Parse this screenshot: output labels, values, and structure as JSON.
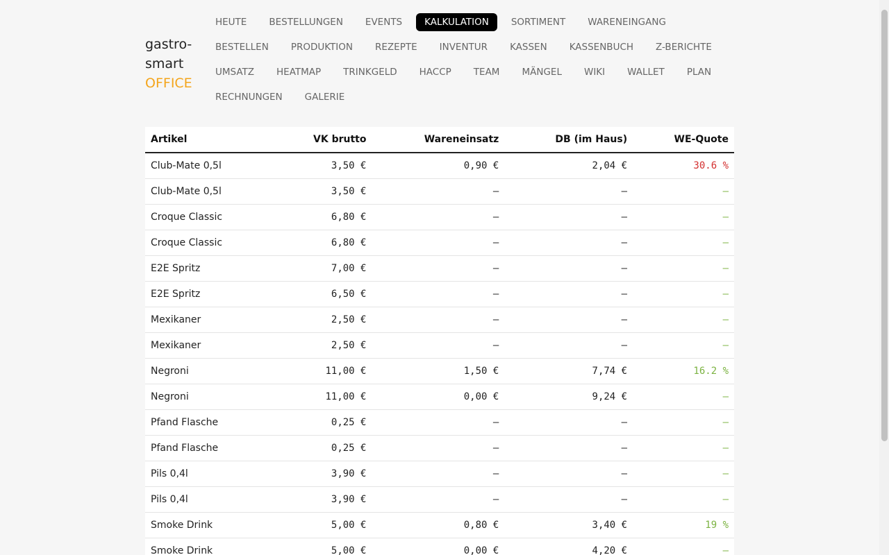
{
  "brand": {
    "line1": "gastro-",
    "line2": "smart",
    "line3": "OFFICE"
  },
  "nav": {
    "items": [
      "HEUTE",
      "BESTELLUNGEN",
      "EVENTS",
      "KALKULATION",
      "SORTIMENT",
      "WARENEINGANG",
      "BESTELLEN",
      "PRODUKTION",
      "REZEPTE",
      "INVENTUR",
      "KASSEN",
      "KASSENBUCH",
      "Z-BERICHTE",
      "UMSATZ",
      "HEATMAP",
      "TRINKGELD",
      "HACCP",
      "TEAM",
      "MÄNGEL",
      "WIKI",
      "WALLET",
      "PLAN",
      "RECHNUNGEN",
      "GALERIE"
    ],
    "active": 3
  },
  "table": {
    "headers": [
      "Artikel",
      "VK brutto",
      "Wareneinsatz",
      "DB (im Haus)",
      "WE-Quote"
    ],
    "rows": [
      [
        "Club-Mate 0,5l",
        "3,50 €",
        "0,90 €",
        "2,04 €",
        "30.6 %"
      ],
      [
        "Club-Mate 0,5l",
        "3,50 €",
        "–",
        "–",
        "–"
      ],
      [
        "Croque Classic",
        "6,80 €",
        "–",
        "–",
        "–"
      ],
      [
        "Croque Classic",
        "6,80 €",
        "–",
        "–",
        "–"
      ],
      [
        "E2E Spritz",
        "7,00 €",
        "–",
        "–",
        "–"
      ],
      [
        "E2E Spritz",
        "6,50 €",
        "–",
        "–",
        "–"
      ],
      [
        "Mexikaner",
        "2,50 €",
        "–",
        "–",
        "–"
      ],
      [
        "Mexikaner",
        "2,50 €",
        "–",
        "–",
        "–"
      ],
      [
        "Negroni",
        "11,00 €",
        "1,50 €",
        "7,74 €",
        "16.2 %"
      ],
      [
        "Negroni",
        "11,00 €",
        "0,00 €",
        "9,24 €",
        "–"
      ],
      [
        "Pfand Flasche",
        "0,25 €",
        "–",
        "–",
        "–"
      ],
      [
        "Pfand Flasche",
        "0,25 €",
        "–",
        "–",
        "–"
      ],
      [
        "Pils 0,4l",
        "3,90 €",
        "–",
        "–",
        "–"
      ],
      [
        "Pils 0,4l",
        "3,90 €",
        "–",
        "–",
        "–"
      ],
      [
        "Smoke Drink",
        "5,00 €",
        "0,80 €",
        "3,40 €",
        "19 %"
      ],
      [
        "Smoke Drink",
        "5,00 €",
        "0,00 €",
        "4,20 €",
        "–"
      ]
    ],
    "quote_colors": [
      "#d32f2f",
      "#7cb342",
      "#7cb342",
      "#7cb342",
      "#7cb342",
      "#7cb342",
      "#7cb342",
      "#7cb342",
      "#7cb342",
      "#7cb342",
      "#7cb342",
      "#7cb342",
      "#7cb342",
      "#7cb342",
      "#7cb342",
      "#7cb342"
    ]
  }
}
